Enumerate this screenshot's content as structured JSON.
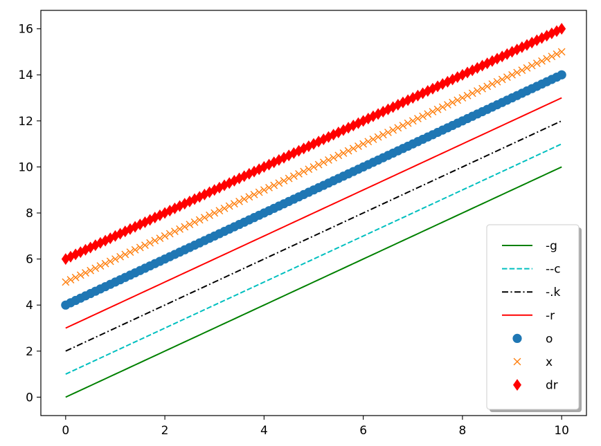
{
  "chart_data": {
    "type": "line",
    "x": [
      0,
      0.1,
      0.2,
      0.3,
      0.4,
      0.5,
      0.6,
      0.7,
      0.8,
      0.9,
      1.0,
      1.1,
      1.2,
      1.3,
      1.4,
      1.5,
      1.6,
      1.7,
      1.8,
      1.9,
      2.0,
      2.1,
      2.2,
      2.3,
      2.4,
      2.5,
      2.6,
      2.7,
      2.8,
      2.9,
      3.0,
      3.1,
      3.2,
      3.3,
      3.4,
      3.5,
      3.6,
      3.7,
      3.8,
      3.9,
      4.0,
      4.1,
      4.2,
      4.3,
      4.4,
      4.5,
      4.6,
      4.7,
      4.8,
      4.9,
      5.0,
      5.1,
      5.2,
      5.3,
      5.4,
      5.5,
      5.6,
      5.7,
      5.8,
      5.9,
      6.0,
      6.1,
      6.2,
      6.3,
      6.4,
      6.5,
      6.6,
      6.7,
      6.8,
      6.9,
      7.0,
      7.1,
      7.2,
      7.3,
      7.4,
      7.5,
      7.6,
      7.7,
      7.8,
      7.9,
      8.0,
      8.1,
      8.2,
      8.3,
      8.4,
      8.5,
      8.6,
      8.7,
      8.8,
      8.9,
      9.0,
      9.1,
      9.2,
      9.3,
      9.4,
      9.5,
      9.6,
      9.7,
      9.8,
      9.9,
      10.0
    ],
    "series": [
      {
        "name": "-g",
        "offset": 0,
        "color": "#008000",
        "linestyle": "solid",
        "marker": "none"
      },
      {
        "name": "--c",
        "offset": 1,
        "color": "#00bfbf",
        "linestyle": "dashed",
        "marker": "none"
      },
      {
        "name": "-.k",
        "offset": 2,
        "color": "#000000",
        "linestyle": "dashdot",
        "marker": "none"
      },
      {
        "name": "-r",
        "offset": 3,
        "color": "#ff0000",
        "linestyle": "solid",
        "marker": "none"
      },
      {
        "name": "o",
        "offset": 4,
        "color": "#1f77b4",
        "linestyle": "none",
        "marker": "circle"
      },
      {
        "name": "x",
        "offset": 5,
        "color": "#ff7f0e",
        "linestyle": "none",
        "marker": "x"
      },
      {
        "name": "dr",
        "offset": 6,
        "color": "#ff0000",
        "linestyle": "none",
        "marker": "diamond"
      }
    ],
    "formula": "y = x + offset",
    "xlim": [
      -0.5,
      10.5
    ],
    "ylim": [
      -0.8,
      16.8
    ],
    "xticks": [
      0,
      2,
      4,
      6,
      8,
      10
    ],
    "yticks": [
      0,
      2,
      4,
      6,
      8,
      10,
      12,
      14,
      16
    ],
    "title": "",
    "xlabel": "",
    "ylabel": "",
    "grid": false,
    "legend_position": "lower-right",
    "legend_shadow": true
  }
}
